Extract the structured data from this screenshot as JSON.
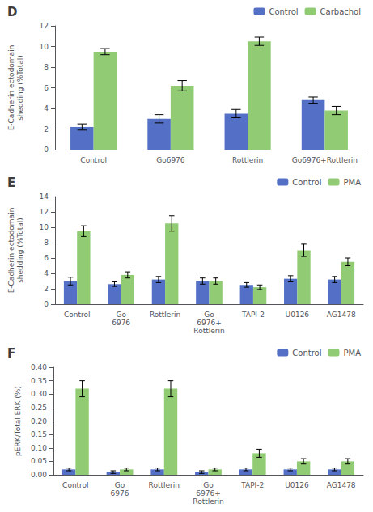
{
  "chart_data": [
    {
      "type": "bar",
      "title": "D",
      "categories": [
        "Control",
        "Go6976",
        "Rottlerin",
        "Go6976+Rottlerin"
      ],
      "series": [
        {
          "name": "Control",
          "values": [
            2.2,
            3.0,
            3.5,
            4.8
          ],
          "errors": [
            0.3,
            0.4,
            0.4,
            0.3
          ]
        },
        {
          "name": "Carbachol",
          "values": [
            9.5,
            6.2,
            10.5,
            3.8
          ],
          "errors": [
            0.3,
            0.5,
            0.4,
            0.4
          ]
        }
      ],
      "ylabel": "E-Cadherin ectodomain\nshedding (%Total)",
      "ylim": [
        0,
        12
      ],
      "yticks": [
        0,
        2,
        4,
        6,
        8,
        10,
        12
      ],
      "legend": "upper right",
      "grid": false
    },
    {
      "type": "bar",
      "title": "E",
      "categories": [
        "Control",
        "Go\n6976",
        "Rottlerin",
        "Go\n6976+\nRottlerin",
        "TAPI-2",
        "U0126",
        "AG1478"
      ],
      "series": [
        {
          "name": "Control",
          "values": [
            3.0,
            2.6,
            3.2,
            3.0,
            2.5,
            3.3,
            3.2
          ],
          "errors": [
            0.5,
            0.3,
            0.4,
            0.4,
            0.3,
            0.4,
            0.4
          ]
        },
        {
          "name": "PMA",
          "values": [
            9.5,
            3.8,
            10.5,
            3.0,
            2.2,
            7.0,
            5.5
          ],
          "errors": [
            0.7,
            0.4,
            1.0,
            0.4,
            0.3,
            0.8,
            0.5
          ]
        }
      ],
      "ylabel": "E-Cadherin ectodomain\nshedding (%Total)",
      "ylim": [
        0,
        14
      ],
      "yticks": [
        0,
        2,
        4,
        6,
        8,
        10,
        12,
        14
      ],
      "legend": "upper right",
      "grid": false
    },
    {
      "type": "bar",
      "title": "F",
      "categories": [
        "Control",
        "Go\n6976",
        "Rottlerin",
        "Go\n6976+\nRottlerin",
        "TAPI-2",
        "U0126",
        "AG1478"
      ],
      "series": [
        {
          "name": "Control",
          "values": [
            0.02,
            0.01,
            0.02,
            0.01,
            0.02,
            0.02,
            0.02
          ],
          "errors": [
            0.005,
            0.005,
            0.005,
            0.005,
            0.005,
            0.005,
            0.005
          ]
        },
        {
          "name": "PMA",
          "values": [
            0.32,
            0.02,
            0.32,
            0.02,
            0.08,
            0.05,
            0.05
          ],
          "errors": [
            0.03,
            0.005,
            0.03,
            0.005,
            0.015,
            0.01,
            0.01
          ]
        }
      ],
      "ylabel": "pERK/Total ERK (%)",
      "ylim": [
        0,
        0.4
      ],
      "yticks": [
        {
          "value": 0,
          "label": "0.00"
        },
        0.05,
        {
          "value": 0.1,
          "label": "0.10"
        },
        0.15,
        {
          "value": 0.2,
          "label": "0.20"
        },
        0.25,
        {
          "value": 0.3,
          "label": "0.30"
        },
        0.35,
        {
          "value": 0.4,
          "label": "0.40"
        }
      ],
      "legend": "upper right",
      "grid": false
    }
  ]
}
